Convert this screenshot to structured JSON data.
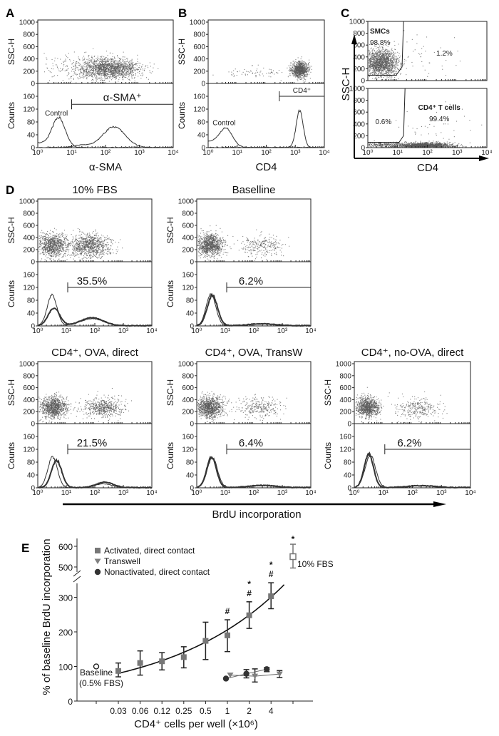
{
  "colors": {
    "dots": "#5a5a5a",
    "line": "#333333",
    "activated": "#777777",
    "transwell": "#808080",
    "nonactivated": "#333333",
    "fbs10": "#777777"
  },
  "flow_axes": {
    "x_ticks": [
      "10⁰",
      "10¹",
      "10²",
      "10³",
      "10⁴"
    ],
    "ssc_ticks": [
      "0",
      "200",
      "400",
      "600",
      "800",
      "1000"
    ],
    "count_ticks": [
      "0",
      "40",
      "80",
      "120",
      "160"
    ],
    "ssc_label": "SSC-H",
    "counts_label": "Counts"
  },
  "panel_A": {
    "letter": "A",
    "xlabel": "α-SMA",
    "gate_label": "α-SMA⁺",
    "control_label": "Control",
    "gate": {
      "from_log": 1.0,
      "to_log": 4,
      "count": 135
    },
    "clusters": [
      {
        "x": 2.1,
        "y": 250,
        "sx": 0.45,
        "sy": 85,
        "n": 1500
      },
      {
        "x": 1.3,
        "y": 250,
        "sx": 0.6,
        "sy": 110,
        "n": 220
      }
    ],
    "histograms": [
      {
        "peaks": [
          [
            0.62,
            0.19,
            90
          ],
          [
            0.05,
            0.35,
            14
          ]
        ],
        "thick": false
      },
      {
        "peaks": [
          [
            2.25,
            0.33,
            64
          ],
          [
            1.3,
            0.25,
            7
          ]
        ],
        "thick": false
      }
    ]
  },
  "panel_B": {
    "letter": "B",
    "xlabel": "CD4",
    "gate_label": "CD4⁺",
    "control_label": "Control",
    "gate": {
      "from_log": 2.45,
      "to_log": 4,
      "count": 160
    },
    "clusters": [
      {
        "x": 3.15,
        "y": 230,
        "sx": 0.14,
        "sy": 65,
        "n": 900
      },
      {
        "x": 1.7,
        "y": 190,
        "sx": 0.55,
        "sy": 45,
        "n": 70
      }
    ],
    "histograms": [
      {
        "peaks": [
          [
            0.62,
            0.22,
            58
          ],
          [
            0.05,
            0.3,
            18
          ]
        ],
        "thick": false
      },
      {
        "peaks": [
          [
            3.15,
            0.12,
            115
          ]
        ],
        "thick": false
      }
    ]
  },
  "panel_C": {
    "letter": "C",
    "xlabel": "CD4",
    "ylabel": "SSC-H",
    "top": {
      "gate_name": "SMCs",
      "gate_pct": "98.8%",
      "other_pct": "1.2%",
      "clusters": [
        {
          "x": 0.4,
          "y": 300,
          "sx": 0.3,
          "sy": 120,
          "n": 1600
        },
        {
          "x": 1.8,
          "y": 300,
          "sx": 0.7,
          "sy": 250,
          "n": 50
        }
      ]
    },
    "bottom": {
      "gate_name": "CD4⁺ T cells",
      "gate_pct": "99.4%",
      "other_pct": "0.6%",
      "clusters": [
        {
          "x": 1.9,
          "y": 40,
          "sx": 0.45,
          "sy": 25,
          "n": 1500
        },
        {
          "x": 0.5,
          "y": 55,
          "sx": 0.4,
          "sy": 20,
          "n": 250
        },
        {
          "x": 2.2,
          "y": 250,
          "sx": 0.7,
          "sy": 250,
          "n": 60
        }
      ]
    }
  },
  "panel_D": {
    "letter": "D",
    "axis_label": "BrdU incorporation",
    "panels": [
      {
        "title": "10% FBS",
        "pct": "35.5%",
        "clusters": [
          {
            "x": 0.5,
            "y": 280,
            "sx": 0.25,
            "sy": 95,
            "n": 900
          },
          {
            "x": 1.8,
            "y": 270,
            "sx": 0.35,
            "sy": 95,
            "n": 900
          }
        ],
        "histograms": [
          {
            "peaks": [
              [
                0.5,
                0.17,
                95
              ],
              [
                1.9,
                0.4,
                22
              ]
            ],
            "thick": false
          },
          {
            "peaks": [
              [
                0.57,
                0.2,
                55
              ],
              [
                1.9,
                0.4,
                25
              ]
            ],
            "thick": true
          }
        ]
      },
      {
        "title": "Baselline",
        "pct": "6.2%",
        "clusters": [
          {
            "x": 0.45,
            "y": 280,
            "sx": 0.22,
            "sy": 90,
            "n": 1000
          },
          {
            "x": 2.25,
            "y": 270,
            "sx": 0.38,
            "sy": 85,
            "n": 260
          }
        ],
        "histograms": [
          {
            "peaks": [
              [
                0.5,
                0.17,
                98
              ],
              [
                2.3,
                0.5,
                6
              ]
            ],
            "thick": false
          },
          {
            "peaks": [
              [
                0.55,
                0.18,
                95
              ],
              [
                2.3,
                0.5,
                6
              ]
            ],
            "thick": true
          }
        ]
      },
      {
        "title": "CD4⁺, OVA, direct",
        "pct": "21.5%",
        "clusters": [
          {
            "x": 0.55,
            "y": 280,
            "sx": 0.24,
            "sy": 90,
            "n": 950
          },
          {
            "x": 2.3,
            "y": 270,
            "sx": 0.35,
            "sy": 80,
            "n": 550
          }
        ],
        "histograms": [
          {
            "peaks": [
              [
                0.52,
                0.17,
                95
              ],
              [
                2.3,
                0.3,
                12
              ]
            ],
            "thick": false
          },
          {
            "peaks": [
              [
                0.66,
                0.18,
                85
              ],
              [
                2.35,
                0.3,
                17
              ]
            ],
            "thick": true
          }
        ]
      },
      {
        "title": "CD4⁺, OVA, TransW",
        "pct": "6.4%",
        "clusters": [
          {
            "x": 0.45,
            "y": 280,
            "sx": 0.22,
            "sy": 90,
            "n": 1000
          },
          {
            "x": 2.2,
            "y": 270,
            "sx": 0.4,
            "sy": 90,
            "n": 280
          }
        ],
        "histograms": [
          {
            "peaks": [
              [
                0.55,
                0.18,
                92
              ],
              [
                2.3,
                0.5,
                6
              ]
            ],
            "thick": false
          },
          {
            "peaks": [
              [
                0.52,
                0.17,
                95
              ],
              [
                2.3,
                0.5,
                7
              ]
            ],
            "thick": true
          }
        ]
      },
      {
        "title": "CD4⁺, no-OVA, direct",
        "pct": "6.2%",
        "clusters": [
          {
            "x": 0.45,
            "y": 280,
            "sx": 0.2,
            "sy": 85,
            "n": 900
          },
          {
            "x": 2.2,
            "y": 260,
            "sx": 0.4,
            "sy": 90,
            "n": 280
          }
        ],
        "histograms": [
          {
            "peaks": [
              [
                0.55,
                0.18,
                100
              ],
              [
                2.3,
                0.5,
                6
              ]
            ],
            "thick": false
          },
          {
            "peaks": [
              [
                0.5,
                0.16,
                105
              ],
              [
                2.3,
                0.5,
                6
              ]
            ],
            "thick": true
          }
        ]
      }
    ]
  },
  "chart_data": {
    "type": "scatter",
    "panel_letter": "E",
    "xlabel": "CD4⁺ cells per well (×10⁶)",
    "ylabel": "% of baseline BrdU incorporation",
    "categories": [
      "0.03",
      "0.06",
      "0.12",
      "0.25",
      "0.5",
      "1",
      "2",
      "4"
    ],
    "y_ticks_lower": [
      0,
      100,
      200,
      300
    ],
    "y_ticks_upper": [
      500,
      600
    ],
    "axis_break": [
      340,
      480
    ],
    "series": [
      {
        "name": "Activated, direct contact",
        "marker": "square",
        "x": [
          "0.03",
          "0.06",
          "0.12",
          "0.25",
          "0.5",
          "1",
          "2",
          "4"
        ],
        "y": [
          87,
          110,
          115,
          127,
          174,
          190,
          248,
          303
        ],
        "err_low": [
          70,
          75,
          90,
          96,
          120,
          143,
          210,
          267
        ],
        "err_high": [
          110,
          145,
          140,
          157,
          228,
          235,
          287,
          342
        ]
      },
      {
        "name": "Transwell",
        "marker": "triangle-down",
        "x": [
          "1",
          "2",
          "4"
        ],
        "y": [
          75,
          72,
          78
        ],
        "err_low": [
          75,
          55,
          68
        ],
        "err_high": [
          75,
          93,
          88
        ]
      },
      {
        "name": "Nonactivated, direct contact",
        "marker": "circle",
        "x": [
          "1",
          "2",
          "4"
        ],
        "y": [
          65,
          79,
          92
        ],
        "err_low": [
          65,
          67,
          85
        ],
        "err_high": [
          65,
          91,
          97
        ]
      }
    ],
    "fit_curve": {
      "series": "Activated, direct contact",
      "shape": "exponential"
    },
    "baseline": {
      "label_1": "Baseline",
      "label_2": "(0.5% FBS)",
      "y": 100
    },
    "fbs10": {
      "label": "10% FBS",
      "y": 550,
      "err_low": 495,
      "err_high": 610,
      "annotation": "*"
    },
    "annotations": [
      {
        "x": "1",
        "text": [
          "#"
        ]
      },
      {
        "x": "2",
        "text": [
          "*",
          "#"
        ]
      },
      {
        "x": "4",
        "text": [
          "*",
          "#"
        ]
      }
    ],
    "legend_position": "top-left"
  }
}
